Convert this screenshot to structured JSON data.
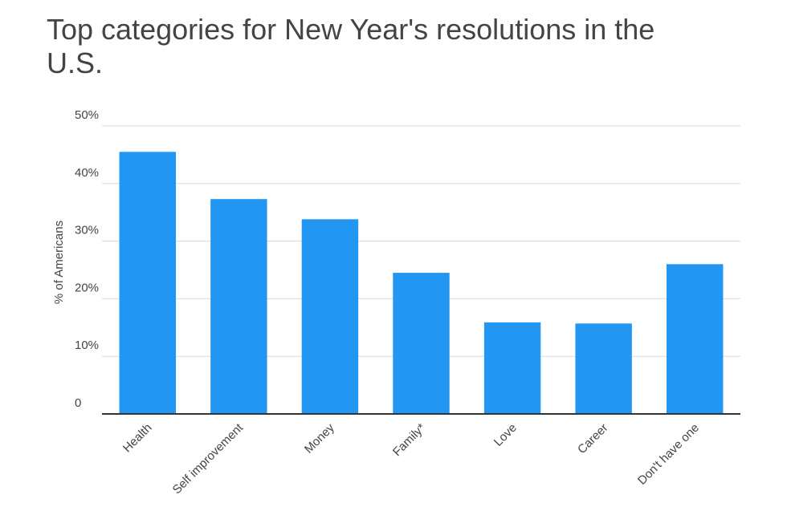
{
  "chart_data": {
    "type": "bar",
    "title": "Top categories for New Year's resolutions in the U.S.",
    "y_label": "% of Americans",
    "categories": [
      "Health",
      "Self improvement",
      "Money",
      "Family*",
      "Love",
      "Career",
      "Don't have one"
    ],
    "values": [
      45.5,
      37.3,
      33.8,
      24.5,
      15.9,
      15.7,
      26.0
    ],
    "color": "#2196f3",
    "ylim": [
      0,
      50
    ],
    "yticks": [
      0,
      {
        "value": 10,
        "label": "10%"
      },
      {
        "value": 20,
        "label": "20%"
      },
      {
        "value": 30,
        "label": "30%"
      },
      {
        "value": 40,
        "label": "40%"
      },
      {
        "value": 50,
        "label": "50%"
      }
    ],
    "grid": true
  }
}
